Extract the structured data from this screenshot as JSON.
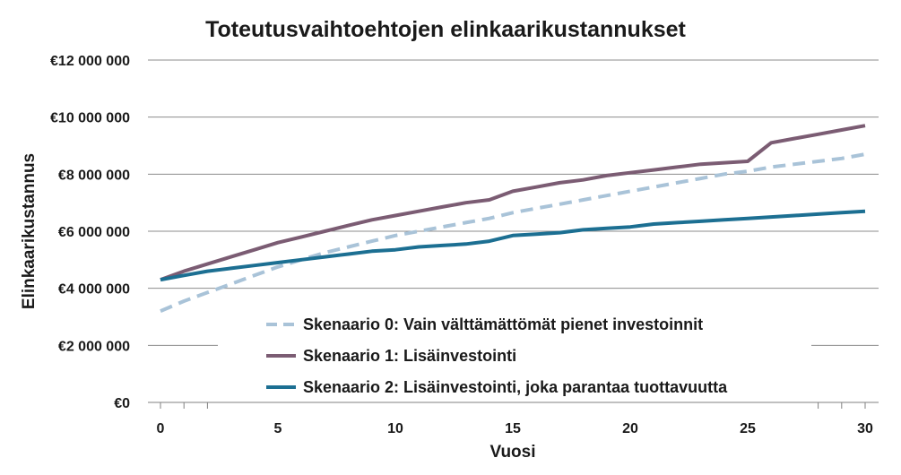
{
  "chart_data": {
    "type": "line",
    "title": "Toteutusvaihtoehtojen elinkaarikustannukset",
    "xlabel": "Vuosi",
    "ylabel": "Elinkaarikustannus",
    "xlim": [
      0,
      30
    ],
    "ylim": [
      0,
      12000000
    ],
    "x_ticks": [
      0,
      5,
      10,
      15,
      20,
      25,
      30
    ],
    "x_tick_labels": [
      "0",
      "5",
      "10",
      "15",
      "20",
      "25",
      "30"
    ],
    "y_ticks": [
      0,
      2000000,
      4000000,
      6000000,
      8000000,
      10000000,
      12000000
    ],
    "y_tick_labels": [
      "€0",
      "€2 000 000",
      "€4 000 000",
      "€6 000 000",
      "€8 000 000",
      "€10 000 000",
      "€12 000 000"
    ],
    "grid": "horizontal",
    "legend_position": "bottom-center",
    "x": [
      0,
      1,
      2,
      3,
      4,
      5,
      6,
      7,
      8,
      9,
      10,
      11,
      12,
      13,
      14,
      15,
      16,
      17,
      18,
      19,
      20,
      21,
      22,
      23,
      24,
      25,
      26,
      27,
      28,
      29,
      30
    ],
    "series": [
      {
        "name": "Skenaario 0: Vain välttämättömät pienet investoinnit",
        "color": "#a9c3d8",
        "style": "dashed",
        "values": [
          3200000,
          3550000,
          3850000,
          4150000,
          4450000,
          4750000,
          5000000,
          5250000,
          5450000,
          5650000,
          5850000,
          6000000,
          6150000,
          6300000,
          6450000,
          6650000,
          6800000,
          6950000,
          7100000,
          7250000,
          7400000,
          7550000,
          7700000,
          7850000,
          8000000,
          8100000,
          8250000,
          8350000,
          8450000,
          8550000,
          8700000
        ]
      },
      {
        "name": "Skenaario 1: Lisäinvestointi",
        "color": "#7b5c73",
        "style": "solid",
        "values": [
          4300000,
          4600000,
          4850000,
          5100000,
          5350000,
          5600000,
          5800000,
          6000000,
          6200000,
          6400000,
          6550000,
          6700000,
          6850000,
          7000000,
          7100000,
          7400000,
          7550000,
          7700000,
          7800000,
          7950000,
          8050000,
          8150000,
          8250000,
          8350000,
          8400000,
          8450000,
          9100000,
          9250000,
          9400000,
          9550000,
          9700000
        ]
      },
      {
        "name": "Skenaario 2: Lisäinvestointi, joka parantaa tuottavuutta",
        "color": "#1c6f92",
        "style": "solid",
        "values": [
          4300000,
          4450000,
          4600000,
          4700000,
          4800000,
          4900000,
          5000000,
          5100000,
          5200000,
          5300000,
          5350000,
          5450000,
          5500000,
          5550000,
          5650000,
          5850000,
          5900000,
          5950000,
          6050000,
          6100000,
          6150000,
          6250000,
          6300000,
          6350000,
          6400000,
          6450000,
          6500000,
          6550000,
          6600000,
          6650000,
          6700000
        ]
      }
    ]
  }
}
